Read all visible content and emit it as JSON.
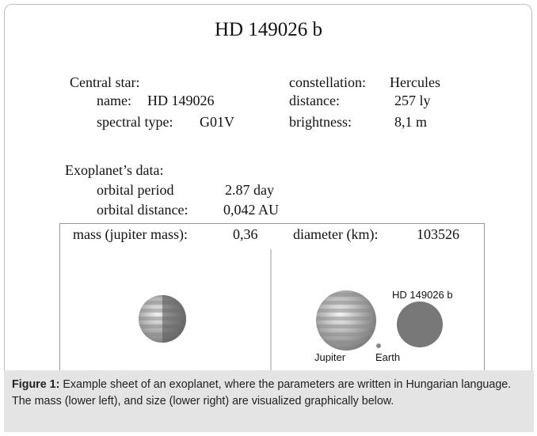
{
  "title": "HD 149026 b",
  "central_star": {
    "heading": "Central star:",
    "name_label": "name:",
    "name": "HD 149026",
    "spectral_label": "spectral type:",
    "spectral": "G01V",
    "constellation_label": "constellation:",
    "constellation": "Hercules",
    "distance_label": "distance:",
    "distance": "257 ly",
    "brightness_label": "brightness:",
    "brightness": "8,1 m"
  },
  "exoplanet": {
    "heading": "Exoplanet’s data:",
    "period_label": "orbital period",
    "period": "2.87 day",
    "orbital_distance_label": "orbital distance:",
    "orbital_distance": "0,042 AU"
  },
  "panels": {
    "mass_label": "mass (jupiter mass):",
    "mass": "0,36",
    "diameter_label": "diameter (km):",
    "diameter": "103526",
    "planet_label": "HD 149026 b",
    "jupiter_label": "Jupiter",
    "earth_label": "Earth"
  },
  "caption": {
    "label": "Figure 1:",
    "text": " Example sheet of an exoplanet, where the parameters are written in Hungarian language. The mass (lower left), and size (lower right) are visualized graphically below."
  }
}
